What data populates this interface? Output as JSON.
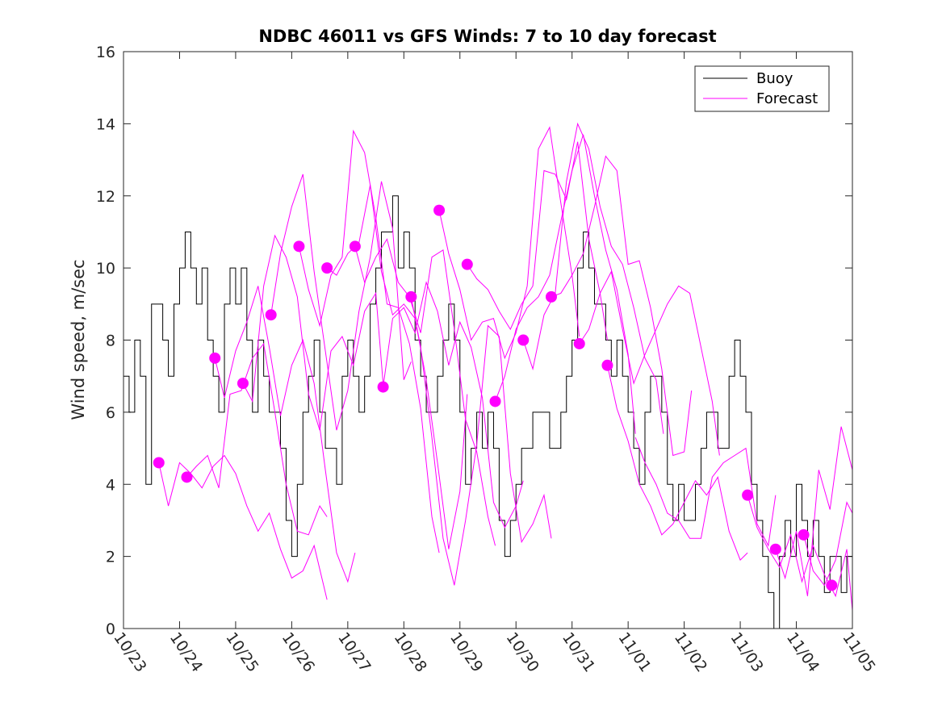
{
  "chart_data": {
    "type": "line",
    "title": "NDBC 46011 vs GFS Winds: 7 to 10 day forecast",
    "xlabel": "",
    "ylabel": "Wind speed, m/sec",
    "ylim": [
      0,
      16
    ],
    "yticks": [
      0,
      2,
      4,
      6,
      8,
      10,
      12,
      14,
      16
    ],
    "xlim": [
      0,
      13
    ],
    "xtick_labels": [
      "10/23",
      "10/24",
      "10/25",
      "10/26",
      "10/27",
      "10/28",
      "10/29",
      "10/30",
      "10/31",
      "11/01",
      "11/02",
      "11/03",
      "11/04",
      "11/05"
    ],
    "grid": false,
    "legend": {
      "position": "top-right",
      "entries": [
        "Buoy",
        "Forecast"
      ]
    },
    "colors": {
      "buoy": "#000000",
      "forecast": "#ff00ff",
      "axes": "#262626"
    },
    "buoy": {
      "name": "Buoy",
      "x": [
        0.0,
        0.1,
        0.2,
        0.3,
        0.4,
        0.5,
        0.6,
        0.7,
        0.8,
        0.9,
        1.0,
        1.1,
        1.2,
        1.3,
        1.4,
        1.5,
        1.6,
        1.7,
        1.8,
        1.9,
        2.0,
        2.1,
        2.2,
        2.3,
        2.4,
        2.5,
        2.6,
        2.7,
        2.8,
        2.9,
        3.0,
        3.1,
        3.2,
        3.3,
        3.4,
        3.5,
        3.6,
        3.7,
        3.8,
        3.9,
        4.0,
        4.1,
        4.2,
        4.3,
        4.4,
        4.5,
        4.6,
        4.7,
        4.8,
        4.9,
        5.0,
        5.1,
        5.2,
        5.3,
        5.4,
        5.5,
        5.6,
        5.7,
        5.8,
        5.9,
        6.0,
        6.1,
        6.2,
        6.3,
        6.4,
        6.5,
        6.6,
        6.7,
        6.8,
        6.9,
        7.0,
        7.1,
        7.2,
        7.3,
        7.4,
        7.5,
        7.6,
        7.7,
        7.8,
        7.9,
        8.0,
        8.1,
        8.2,
        8.3,
        8.4,
        8.5,
        8.6,
        8.7,
        8.8,
        8.9,
        9.0,
        9.1,
        9.2,
        9.3,
        9.4,
        9.5,
        9.6,
        9.7,
        9.8,
        9.9,
        10.0,
        10.1,
        10.2,
        10.3,
        10.4,
        10.5,
        10.6,
        10.7,
        10.8,
        10.9,
        11.0,
        11.1,
        11.2,
        11.3,
        11.4,
        11.5,
        11.6,
        11.7,
        11.8,
        11.9,
        12.0,
        12.1,
        12.2,
        12.3,
        12.4,
        12.5,
        12.6,
        12.7,
        12.8,
        12.9,
        13.0
      ],
      "values": [
        7,
        6,
        8,
        7,
        4,
        9,
        9,
        8,
        7,
        9,
        10,
        11,
        10,
        9,
        10,
        8,
        7,
        6,
        9,
        10,
        9,
        10,
        8,
        6,
        8,
        7,
        6,
        6,
        5,
        3,
        2,
        4,
        6,
        7,
        8,
        6,
        5,
        5,
        4,
        7,
        8,
        7,
        6,
        7,
        9,
        10,
        11,
        11,
        12,
        10,
        11,
        10,
        8,
        7,
        6,
        6,
        7,
        8,
        9,
        8,
        6,
        4,
        5,
        6,
        5,
        6,
        5,
        3,
        2,
        3,
        4,
        5,
        5,
        6,
        6,
        6,
        5,
        5,
        6,
        7,
        8,
        10,
        11,
        10,
        9,
        9,
        8,
        7,
        8,
        7,
        6,
        5,
        4,
        6,
        7,
        7,
        6,
        4,
        3,
        4,
        3,
        3,
        4,
        5,
        6,
        6,
        5,
        5,
        7,
        8,
        7,
        6,
        4,
        3,
        2,
        1,
        0,
        2,
        3,
        2,
        4,
        3,
        2,
        3,
        2,
        1,
        2,
        2,
        1,
        2,
        2
      ],
      "note": "approximate hourly-ish trace read from the plot"
    },
    "forecast": {
      "name": "Forecast",
      "series": [
        {
          "x": [
            0.63,
            0.8,
            1.0,
            1.2,
            1.4,
            1.6,
            1.8,
            2.0,
            2.2,
            2.4,
            2.6,
            2.8,
            3.0,
            3.2,
            3.4,
            3.63
          ],
          "values": [
            4.6,
            3.4,
            4.6,
            4.3,
            3.9,
            4.5,
            4.8,
            4.3,
            3.4,
            2.7,
            3.2,
            2.2,
            1.4,
            1.6,
            2.3,
            0.8
          ]
        },
        {
          "x": [
            1.13,
            1.3,
            1.5,
            1.7,
            1.9,
            2.1,
            2.3,
            2.5,
            2.7,
            2.9,
            3.1,
            3.3,
            3.5,
            3.63
          ],
          "values": [
            4.2,
            4.5,
            4.8,
            3.9,
            6.5,
            6.6,
            7.5,
            7.9,
            6.0,
            4.0,
            2.7,
            2.6,
            3.4,
            3.1
          ]
        },
        {
          "x": [
            1.63,
            1.8,
            2.0,
            2.2,
            2.4,
            2.6,
            2.8,
            3.0,
            3.2,
            3.4,
            3.6,
            3.8,
            4.0,
            4.13
          ],
          "values": [
            7.5,
            6.4,
            7.7,
            8.5,
            9.5,
            7.8,
            5.9,
            7.3,
            8.0,
            6.8,
            4.4,
            2.1,
            1.3,
            2.1
          ]
        },
        {
          "x": [
            2.13,
            2.3,
            2.5,
            2.7,
            2.9,
            3.1,
            3.3,
            3.5,
            3.7,
            3.9,
            4.1,
            4.3,
            4.5,
            4.63
          ],
          "values": [
            6.8,
            6.3,
            9.5,
            10.9,
            10.3,
            9.2,
            6.5,
            5.5,
            7.7,
            8.1,
            7.3,
            8.8,
            9.3,
            6.8
          ]
        },
        {
          "x": [
            2.63,
            2.8,
            3.0,
            3.2,
            3.4,
            3.6,
            3.8,
            4.0,
            4.2,
            4.4,
            4.6,
            4.8,
            5.0,
            5.13
          ],
          "values": [
            8.7,
            10.4,
            11.7,
            12.6,
            9.9,
            7.7,
            5.5,
            6.6,
            8.8,
            10.3,
            12.4,
            11.1,
            6.9,
            7.4
          ]
        },
        {
          "x": [
            3.13,
            3.3,
            3.5,
            3.7,
            3.9,
            4.1,
            4.3,
            4.5,
            4.7,
            4.9,
            5.1,
            5.3,
            5.5,
            5.63
          ],
          "values": [
            10.6,
            9.4,
            8.4,
            9.8,
            10.3,
            13.8,
            13.2,
            11.4,
            9.0,
            8.9,
            7.9,
            6.1,
            3.1,
            2.1
          ]
        },
        {
          "x": [
            3.63,
            3.8,
            4.0,
            4.2,
            4.4,
            4.6,
            4.8,
            5.0,
            5.2,
            5.4,
            5.6,
            5.8,
            6.0,
            6.13
          ],
          "values": [
            10.0,
            9.8,
            10.4,
            10.7,
            12.3,
            9.9,
            8.7,
            9.0,
            8.6,
            6.9,
            4.6,
            2.2,
            3.8,
            6.5
          ]
        },
        {
          "x": [
            4.13,
            4.3,
            4.5,
            4.7,
            4.9,
            5.1,
            5.3,
            5.5,
            5.7,
            5.9,
            6.1,
            6.3,
            6.5,
            6.63
          ],
          "values": [
            10.6,
            9.6,
            10.3,
            10.8,
            9.6,
            9.2,
            8.2,
            10.3,
            10.5,
            8.3,
            5.8,
            4.9,
            3.1,
            2.3
          ]
        },
        {
          "x": [
            4.63,
            4.8,
            5.0,
            5.2,
            5.4,
            5.6,
            5.8,
            6.0,
            6.2,
            6.4,
            6.6,
            6.8,
            7.0,
            7.13
          ],
          "values": [
            6.7,
            8.6,
            8.9,
            8.2,
            9.6,
            8.8,
            7.3,
            8.5,
            7.8,
            6.4,
            3.5,
            2.8,
            3.4,
            4.1
          ]
        },
        {
          "x": [
            5.13,
            5.3,
            5.5,
            5.7,
            5.9,
            6.1,
            6.3,
            6.5,
            6.7,
            6.9,
            7.1,
            7.3,
            7.5,
            7.63
          ],
          "values": [
            9.2,
            7.8,
            5.3,
            2.5,
            1.2,
            3.0,
            5.1,
            8.4,
            8.1,
            4.3,
            2.4,
            2.9,
            3.7,
            2.5
          ]
        },
        {
          "x": [
            5.63,
            5.8,
            6.0,
            6.2,
            6.4,
            6.6,
            6.8,
            7.0,
            7.2,
            7.4,
            7.6,
            7.8,
            8.0,
            8.13
          ],
          "values": [
            11.6,
            10.4,
            9.4,
            8.0,
            8.5,
            8.6,
            7.5,
            8.2,
            9.5,
            13.3,
            13.9,
            11.8,
            9.8,
            8.1
          ]
        },
        {
          "x": [
            6.13,
            6.3,
            6.5,
            6.7,
            6.9,
            7.1,
            7.3,
            7.5,
            7.7,
            7.9,
            8.1,
            8.3,
            8.5,
            8.63
          ],
          "values": [
            10.1,
            9.7,
            9.4,
            8.8,
            8.3,
            9.0,
            9.5,
            12.7,
            12.6,
            11.9,
            13.5,
            10.8,
            9.3,
            8.0
          ]
        },
        {
          "x": [
            6.63,
            6.8,
            7.0,
            7.2,
            7.4,
            7.6,
            7.8,
            8.0,
            8.2,
            8.4,
            8.6,
            8.8,
            9.0,
            9.13
          ],
          "values": [
            6.3,
            7.0,
            8.3,
            8.9,
            9.2,
            9.8,
            11.3,
            12.7,
            13.7,
            12.0,
            10.5,
            9.4,
            7.6,
            5.4
          ]
        },
        {
          "x": [
            7.13,
            7.3,
            7.5,
            7.7,
            7.9,
            8.1,
            8.3,
            8.5,
            8.7,
            8.9,
            9.1,
            9.3,
            9.5,
            9.63
          ],
          "values": [
            8.0,
            7.2,
            8.7,
            9.3,
            12.4,
            14.0,
            13.3,
            11.7,
            10.6,
            10.1,
            8.9,
            7.5,
            6.9,
            5.4
          ]
        },
        {
          "x": [
            7.63,
            7.8,
            8.0,
            8.2,
            8.4,
            8.6,
            8.8,
            9.0,
            9.2,
            9.4,
            9.6,
            9.8,
            10.0,
            10.13
          ],
          "values": [
            9.2,
            9.3,
            9.8,
            10.4,
            11.7,
            13.1,
            12.7,
            10.1,
            10.2,
            8.9,
            7.2,
            4.8,
            4.9,
            6.6
          ]
        },
        {
          "x": [
            8.13,
            8.3,
            8.5,
            8.7,
            8.9,
            9.1,
            9.3,
            9.5,
            9.7,
            9.9,
            10.1,
            10.3,
            10.5,
            10.63
          ],
          "values": [
            7.9,
            8.3,
            9.3,
            9.9,
            8.3,
            6.8,
            7.6,
            8.3,
            9.0,
            9.5,
            9.3,
            7.8,
            6.3,
            4.8
          ]
        },
        {
          "x": [
            8.63,
            8.8,
            9.0,
            9.2,
            9.4,
            9.6,
            9.8,
            10.0,
            10.2,
            10.4,
            10.6,
            10.8,
            11.0,
            11.13
          ],
          "values": [
            7.3,
            6.1,
            5.2,
            4.0,
            3.4,
            2.6,
            2.9,
            3.5,
            4.1,
            3.7,
            4.2,
            2.7,
            1.9,
            2.1
          ]
        },
        {
          "x": [
            9.13,
            9.3,
            9.5,
            9.7,
            9.9,
            10.1,
            10.3,
            10.5,
            10.7,
            10.9,
            11.1,
            11.3,
            11.5,
            11.63
          ],
          "values": [
            5.3,
            4.6,
            4.0,
            3.2,
            3.0,
            2.5,
            2.5,
            4.2,
            4.6,
            4.8,
            5.0,
            2.9,
            2.3,
            3.7
          ]
        },
        {
          "x": [
            11.13,
            11.3,
            11.5,
            11.7,
            11.9,
            12.1,
            12.3,
            12.5,
            12.7,
            12.9,
            13.0
          ],
          "values": [
            3.7,
            2.8,
            2.2,
            1.7,
            2.6,
            1.3,
            2.3,
            1.5,
            0.9,
            2.2,
            0.5
          ]
        },
        {
          "x": [
            11.63,
            11.8,
            12.0,
            12.2,
            12.4,
            12.6,
            12.8,
            13.0
          ],
          "values": [
            2.2,
            1.4,
            2.7,
            0.9,
            4.4,
            3.3,
            5.6,
            4.4
          ]
        },
        {
          "x": [
            12.13,
            12.3,
            12.5,
            12.7,
            12.9,
            13.0
          ],
          "values": [
            2.6,
            1.6,
            1.2,
            1.9,
            3.5,
            3.2
          ]
        }
      ],
      "markers": {
        "x": [
          0.63,
          1.13,
          1.63,
          2.13,
          2.63,
          3.13,
          3.63,
          4.13,
          4.63,
          5.13,
          5.63,
          6.13,
          6.63,
          7.13,
          7.63,
          8.13,
          8.63,
          11.13,
          11.63,
          12.13,
          12.63
        ],
        "values": [
          4.6,
          4.2,
          7.5,
          6.8,
          8.7,
          10.6,
          10.0,
          10.6,
          6.7,
          9.2,
          11.6,
          10.1,
          6.3,
          8.0,
          9.2,
          7.9,
          7.3,
          3.7,
          2.2,
          2.6,
          1.2
        ]
      }
    }
  }
}
